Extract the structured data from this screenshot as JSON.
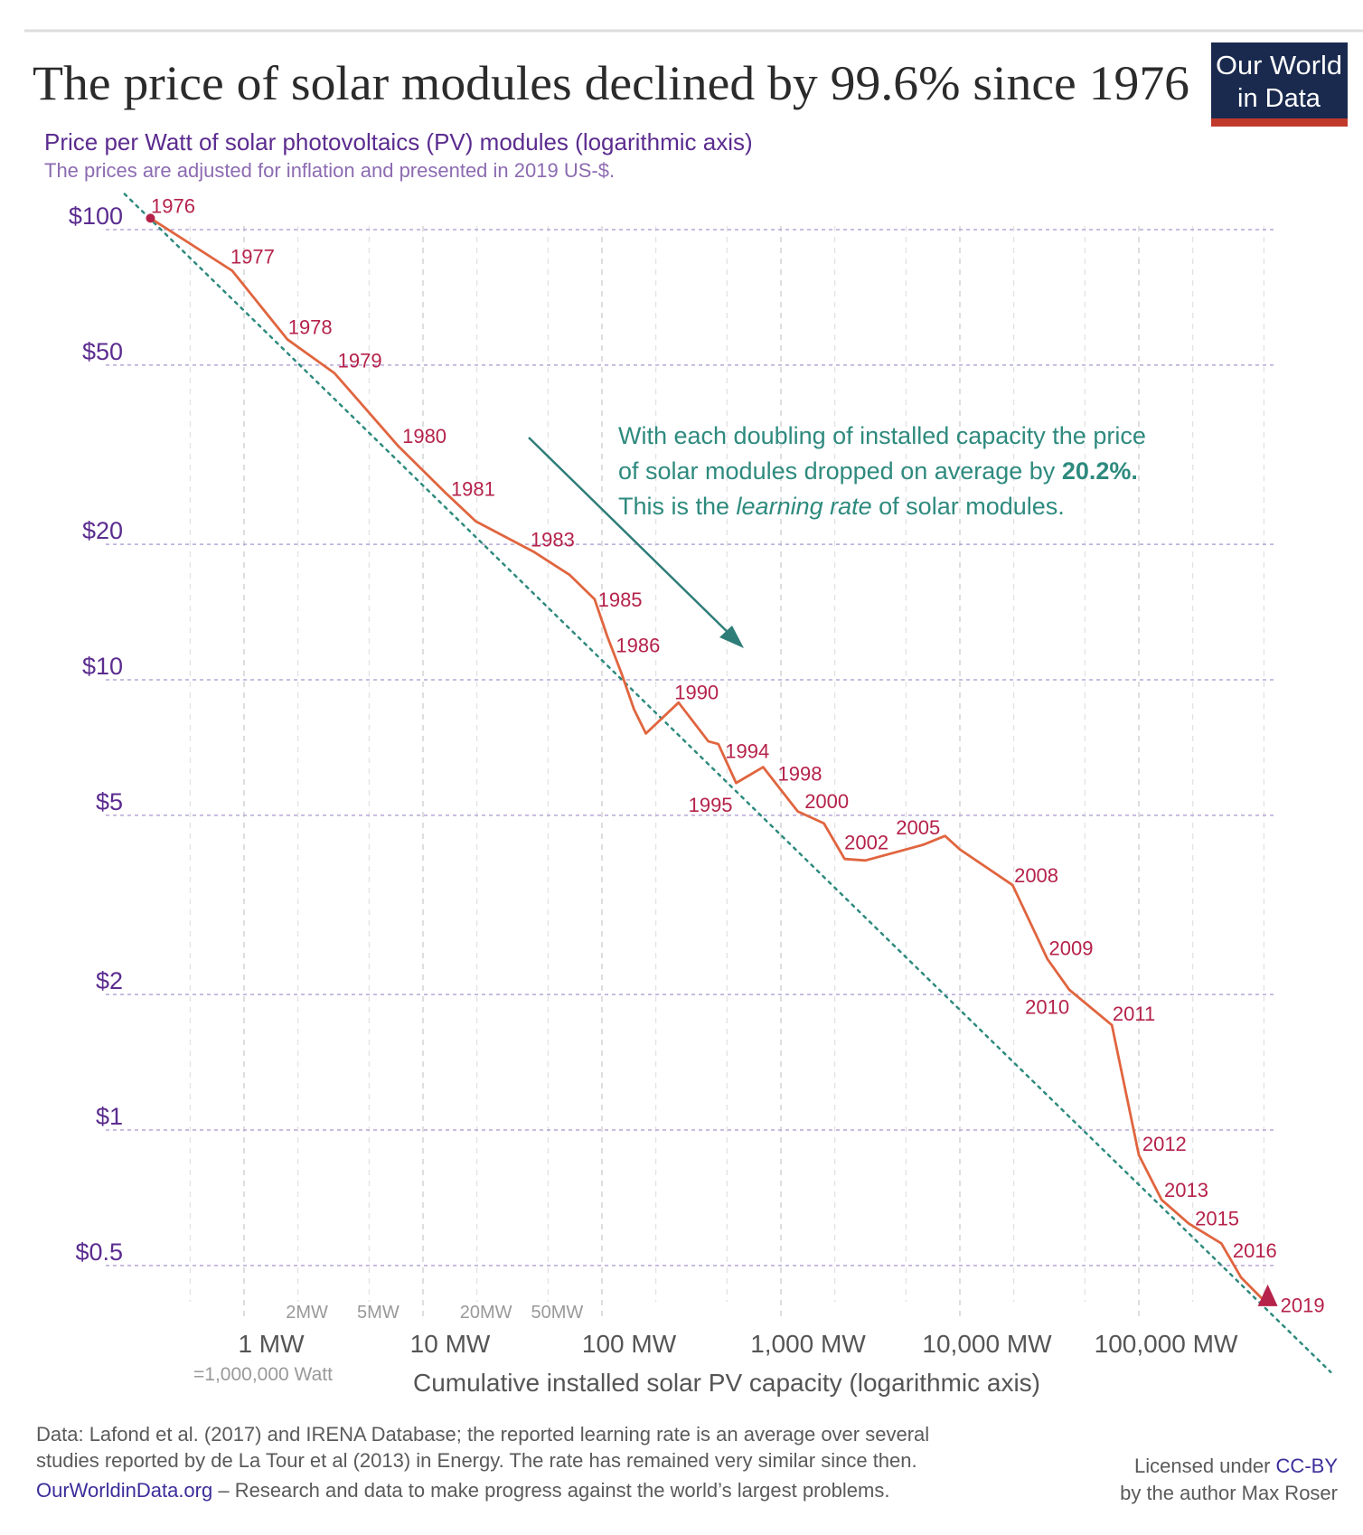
{
  "title": "The price of solar modules declined by 99.6% since 1976",
  "logo": {
    "line1": "Our World",
    "line2": "in Data",
    "bg": "#1a2a4f",
    "accent": "#c0392b"
  },
  "subtitle": "Price per Watt of solar photovoltaics (PV) modules (logarithmic axis)",
  "subtitle2": "The prices are adjusted for inflation and presented in 2019 US-$.",
  "annotation": {
    "line1": "With each doubling of installed capacity the price",
    "line2a": "of solar modules dropped on average by ",
    "line2b": "20.2%.",
    "line3a": "This is the ",
    "line3b": "learning rate",
    "line3c": " of solar modules."
  },
  "footer": {
    "line1": "Data: Lafond et al. (2017) and IRENA Database; the reported learning rate is an average over several",
    "line2": "studies reported by de La Tour et al (2013) in Energy. The rate has remained very similar since then.",
    "site": "OurWorldinData.org",
    "line3": " – Research and data to make progress against the world’s largest problems.",
    "license_prefix": "Licensed under ",
    "license": "CC-BY",
    "author": "by the author Max Roser"
  },
  "chart_data": {
    "type": "line",
    "title": "The price of solar modules declined by 99.6% since 1976",
    "xlabel": "Cumulative installed solar PV capacity (logarithmic axis)",
    "xlabel_note": "=1,000,000 Watt",
    "ylabel": "",
    "x_scale": "log",
    "y_scale": "log",
    "xlim_mw": [
      0.2,
      1200000
    ],
    "ylim_usd": [
      0.35,
      120
    ],
    "grid": true,
    "y_ticks": [
      {
        "value": 100,
        "label": "$100"
      },
      {
        "value": 50,
        "label": "$50"
      },
      {
        "value": 20,
        "label": "$20"
      },
      {
        "value": 10,
        "label": "$10"
      },
      {
        "value": 5,
        "label": "$5"
      },
      {
        "value": 2,
        "label": "$2"
      },
      {
        "value": 1,
        "label": "$1"
      },
      {
        "value": 0.5,
        "label": "$0.5"
      }
    ],
    "x_ticks": [
      {
        "value": 1,
        "label": "1 MW"
      },
      {
        "value": 10,
        "label": "10 MW"
      },
      {
        "value": 100,
        "label": "100 MW"
      },
      {
        "value": 1000,
        "label": "1,000 MW"
      },
      {
        "value": 10000,
        "label": "10,000 MW"
      },
      {
        "value": 100000,
        "label": "100,000 MW"
      }
    ],
    "x_minor_labels": [
      {
        "value": 2,
        "label": "2MW"
      },
      {
        "value": 5,
        "label": "5MW"
      },
      {
        "value": 20,
        "label": "20MW"
      },
      {
        "value": 50,
        "label": "50MW"
      }
    ],
    "series": [
      {
        "color": "#e0653f",
        "points": [
          {
            "x": 0.3,
            "y": 106,
            "label": "1976"
          },
          {
            "x": 0.86,
            "y": 81,
            "label": "1977"
          },
          {
            "x": 1.75,
            "y": 57,
            "label": "1978"
          },
          {
            "x": 3.2,
            "y": 48,
            "label": "1979"
          },
          {
            "x": 7.3,
            "y": 33,
            "label": "1980"
          },
          {
            "x": 13.4,
            "y": 26,
            "label": "1981"
          },
          {
            "x": 19.7,
            "y": 22.5,
            "label": null
          },
          {
            "x": 42,
            "y": 19.2,
            "label": "1983"
          },
          {
            "x": 66,
            "y": 17.1,
            "label": null
          },
          {
            "x": 91,
            "y": 15.1,
            "label": "1985"
          },
          {
            "x": 107,
            "y": 12.5,
            "label": "1986"
          },
          {
            "x": 129,
            "y": 10.3,
            "label": null
          },
          {
            "x": 151,
            "y": 8.6,
            "label": null
          },
          {
            "x": 176,
            "y": 7.6,
            "label": null
          },
          {
            "x": 268,
            "y": 8.9,
            "label": "1990"
          },
          {
            "x": 393,
            "y": 7.3,
            "label": null
          },
          {
            "x": 447,
            "y": 7.2,
            "label": "1994"
          },
          {
            "x": 562,
            "y": 5.9,
            "label": "1995"
          },
          {
            "x": 795,
            "y": 6.4,
            "label": "1998"
          },
          {
            "x": 1242,
            "y": 5.1,
            "label": null
          },
          {
            "x": 1738,
            "y": 4.8,
            "label": "2000"
          },
          {
            "x": 2270,
            "y": 4.0,
            "label": null
          },
          {
            "x": 2966,
            "y": 3.97,
            "label": "2002"
          },
          {
            "x": 6220,
            "y": 4.3,
            "label": null
          },
          {
            "x": 8260,
            "y": 4.5,
            "label": "2005"
          },
          {
            "x": 10000,
            "y": 4.2,
            "label": null
          },
          {
            "x": 19700,
            "y": 3.5,
            "label": "2008"
          },
          {
            "x": 30800,
            "y": 2.4,
            "label": "2009"
          },
          {
            "x": 40800,
            "y": 2.05,
            "label": "2010"
          },
          {
            "x": 70700,
            "y": 1.71,
            "label": "2011"
          },
          {
            "x": 100000,
            "y": 0.88,
            "label": "2012"
          },
          {
            "x": 134000,
            "y": 0.7,
            "label": "2013"
          },
          {
            "x": 190000,
            "y": 0.62,
            "label": "2015"
          },
          {
            "x": 289000,
            "y": 0.56,
            "label": "2016"
          },
          {
            "x": 373000,
            "y": 0.47,
            "label": null
          },
          {
            "x": 525000,
            "y": 0.41,
            "label": "2019"
          }
        ]
      }
    ],
    "trend_line": {
      "color": "#2e8a7e",
      "style": "dotted",
      "learning_rate_pct": 20.2,
      "from": {
        "x": 0.215,
        "y": 120
      },
      "to": {
        "x": 1180000,
        "y": 0.29
      }
    },
    "colors": {
      "labels": "#b5224a",
      "grid": "#b7a6d6",
      "y_ticks": "#5b2c8f",
      "annotation": "#2e8a7e"
    }
  }
}
